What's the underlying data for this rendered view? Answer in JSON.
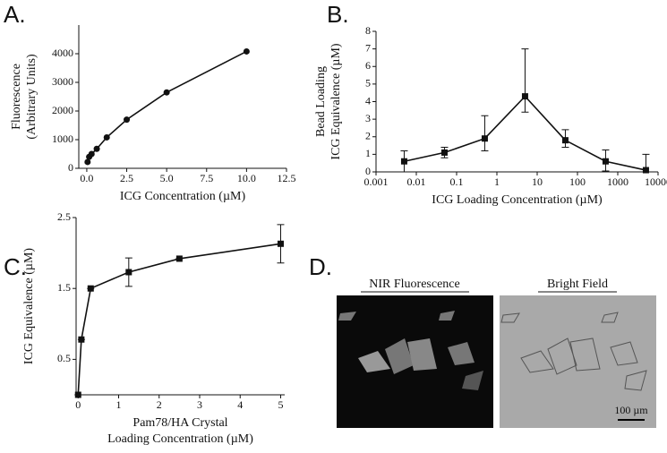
{
  "chart_data": [
    {
      "panel": "A.",
      "type": "line",
      "marker": "circle",
      "color": "#111",
      "x_label": "ICG Concentration (µM)",
      "y_label": [
        "Fluorescence",
        "(Arbitrary Units)"
      ],
      "x": [
        0.05,
        0.15,
        0.3,
        0.625,
        1.25,
        2.5,
        5,
        10
      ],
      "values": [
        220,
        400,
        500,
        680,
        1080,
        1700,
        2650,
        4080
      ],
      "xlim": [
        -0.5,
        12.5
      ],
      "ylim": [
        0,
        5000
      ],
      "xticks": [
        {
          "value": 0,
          "label": "0.0"
        },
        {
          "value": 2.5,
          "label": "2.5"
        },
        {
          "value": 5,
          "label": "5.0"
        },
        {
          "value": 7.5,
          "label": "7.5"
        },
        {
          "value": 10,
          "label": "10.0"
        },
        {
          "value": 12.5,
          "label": "12.5"
        }
      ],
      "yticks": [
        0,
        1000,
        2000,
        3000,
        4000
      ]
    },
    {
      "panel": "B.",
      "type": "line",
      "marker": "square",
      "color": "#111",
      "log_x": true,
      "x_label": "ICG Loading Concentration (µM)",
      "y_label": [
        "Bead Loading",
        "ICG Equivalence (µM)"
      ],
      "x": [
        0.005,
        0.05,
        0.5,
        5,
        50,
        500,
        5000
      ],
      "values": [
        0.6,
        1.1,
        1.9,
        4.3,
        1.8,
        0.6,
        0.1
      ],
      "err_up": [
        0.6,
        0.3,
        1.3,
        2.7,
        0.6,
        0.65,
        0.9
      ],
      "err_down": [
        0.6,
        0.3,
        0.7,
        0.9,
        0.4,
        0.55,
        0.1
      ],
      "xlim": [
        0.001,
        10000
      ],
      "ylim": [
        0,
        8
      ],
      "xticks": [
        0.001,
        0.01,
        0.1,
        1,
        10,
        100,
        1000,
        10000
      ],
      "yticks": [
        0,
        1,
        2,
        3,
        4,
        5,
        6,
        7,
        8
      ]
    },
    {
      "panel": "C.",
      "type": "line",
      "marker": "square",
      "color": "#111",
      "x_label": [
        "Pam78/HA Crystal",
        "Loading Concentration (µM)"
      ],
      "y_label": [
        "ICG Equivalence (µM)"
      ],
      "x": [
        0,
        0.08,
        0.31,
        1.25,
        2.5,
        5
      ],
      "values": [
        0,
        0.78,
        1.5,
        1.73,
        1.92,
        2.13
      ],
      "err_up": [
        0,
        0,
        0,
        0.2,
        0,
        0.27
      ],
      "err_down": [
        0,
        0,
        0,
        0.2,
        0,
        0.27
      ],
      "xlim": [
        -0.05,
        5.1
      ],
      "ylim": [
        0,
        2.5
      ],
      "xticks": [
        0,
        1,
        2,
        3,
        4,
        5
      ],
      "yticks": [
        0.5,
        1.5,
        2.5
      ]
    }
  ],
  "panel_d": {
    "panel": "D.",
    "left_title": "NIR Fluorescence",
    "right_title": "Bright Field",
    "scale_bar": "100 µm"
  }
}
